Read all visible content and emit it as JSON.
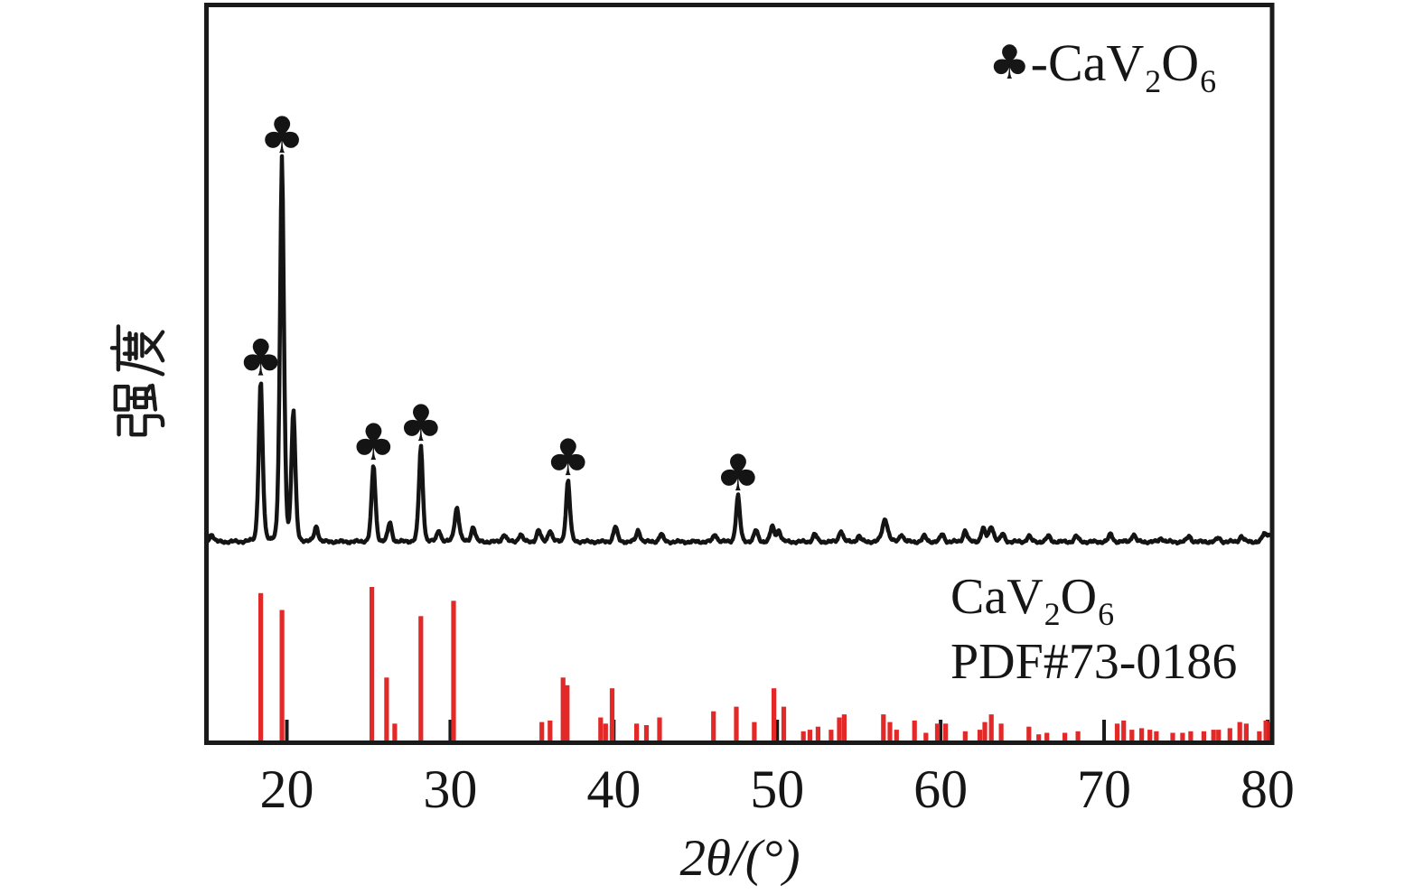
{
  "figure": {
    "background": "#ffffff",
    "axis_color": "#1a1a1a",
    "text_color": "#161616"
  },
  "chart_data": {
    "type": "line",
    "kind": "powder XRD pattern with reference stick pattern",
    "title": "",
    "xlabel": "2θ/(°)",
    "ylabel": "强度",
    "x_range": [
      15.08,
      80.28
    ],
    "x_ticks": [
      20,
      30,
      40,
      50,
      60,
      70,
      80
    ],
    "grid": false,
    "axis_color": "#1a1a1a",
    "legend": {
      "position": "top-right",
      "marker": "♣",
      "formula_pre": "-CaV",
      "formula_sub1": "2",
      "formula_mid": "O",
      "formula_sub2": "6"
    },
    "reference_label": {
      "formula_pre": "CaV",
      "formula_sub1": "2",
      "formula_mid": "O",
      "formula_sub2": "6",
      "line2": "PDF#73-0186"
    },
    "series": [
      {
        "name": "sample-xrd-curve",
        "color": "#141414",
        "marker": "♣",
        "marked_peaks": [
          18.4,
          19.7,
          25.3,
          28.2,
          37.2,
          47.6
        ],
        "peaks": [
          [
            15.4,
            2
          ],
          [
            18.4,
            42
          ],
          [
            19.7,
            100
          ],
          [
            20.4,
            34
          ],
          [
            21.8,
            4
          ],
          [
            25.3,
            20
          ],
          [
            26.3,
            5
          ],
          [
            28.2,
            25
          ],
          [
            29.3,
            3
          ],
          [
            30.4,
            9,
            0.15
          ],
          [
            31.4,
            4
          ],
          [
            33.3,
            2
          ],
          [
            34.3,
            2
          ],
          [
            35.4,
            3
          ],
          [
            36.1,
            3
          ],
          [
            37.2,
            16
          ],
          [
            40.1,
            4
          ],
          [
            41.5,
            3
          ],
          [
            42.9,
            2
          ],
          [
            46.2,
            2
          ],
          [
            47.6,
            12
          ],
          [
            48.7,
            3
          ],
          [
            49.7,
            4
          ],
          [
            50.1,
            3
          ],
          [
            52.3,
            2
          ],
          [
            53.9,
            3
          ],
          [
            55.0,
            1.5
          ],
          [
            56.6,
            6,
            0.18
          ],
          [
            57.6,
            2
          ],
          [
            59.0,
            1.5
          ],
          [
            60.1,
            2
          ],
          [
            61.5,
            3
          ],
          [
            62.6,
            3.5
          ],
          [
            63.1,
            4,
            0.16
          ],
          [
            63.8,
            2
          ],
          [
            65.4,
            1.5
          ],
          [
            66.6,
            1.5
          ],
          [
            68.3,
            1.5
          ],
          [
            70.4,
            2
          ],
          [
            71.8,
            2
          ],
          [
            73.5,
            1
          ],
          [
            75.2,
            1.5
          ],
          [
            77.0,
            1
          ],
          [
            78.4,
            1.5
          ],
          [
            79.8,
            2
          ],
          [
            80.1,
            2
          ]
        ]
      },
      {
        "name": "reference-sticks-CaV2O6-PDF-73-0186",
        "color": "#e22928",
        "sticks": [
          [
            18.4,
            96
          ],
          [
            19.7,
            85
          ],
          [
            25.2,
            100
          ],
          [
            26.1,
            41
          ],
          [
            26.6,
            11
          ],
          [
            28.2,
            81
          ],
          [
            30.2,
            91
          ],
          [
            35.6,
            12
          ],
          [
            36.1,
            13
          ],
          [
            36.9,
            41
          ],
          [
            37.15,
            36
          ],
          [
            39.2,
            15
          ],
          [
            39.5,
            11
          ],
          [
            39.9,
            34
          ],
          [
            41.4,
            11
          ],
          [
            42.0,
            10
          ],
          [
            42.8,
            15
          ],
          [
            46.1,
            19
          ],
          [
            47.5,
            22
          ],
          [
            48.6,
            12
          ],
          [
            49.8,
            34
          ],
          [
            50.4,
            22
          ],
          [
            51.6,
            6
          ],
          [
            52.0,
            7
          ],
          [
            52.5,
            9
          ],
          [
            53.3,
            7
          ],
          [
            53.8,
            15
          ],
          [
            54.1,
            17
          ],
          [
            56.5,
            17
          ],
          [
            56.9,
            12
          ],
          [
            57.3,
            7
          ],
          [
            58.4,
            13
          ],
          [
            59.1,
            5
          ],
          [
            59.8,
            11
          ],
          [
            60.3,
            11
          ],
          [
            61.5,
            6
          ],
          [
            62.4,
            7
          ],
          [
            62.7,
            12
          ],
          [
            63.1,
            17
          ],
          [
            63.7,
            11
          ],
          [
            65.4,
            9
          ],
          [
            66.0,
            4
          ],
          [
            66.5,
            5
          ],
          [
            67.6,
            5
          ],
          [
            68.4,
            6
          ],
          [
            70.8,
            11
          ],
          [
            71.2,
            13
          ],
          [
            71.7,
            7
          ],
          [
            72.3,
            8
          ],
          [
            72.8,
            7
          ],
          [
            73.2,
            6
          ],
          [
            74.2,
            5
          ],
          [
            74.8,
            5
          ],
          [
            75.3,
            6
          ],
          [
            76.1,
            6
          ],
          [
            76.7,
            7
          ],
          [
            77.0,
            7
          ],
          [
            77.7,
            8
          ],
          [
            78.3,
            12
          ],
          [
            78.7,
            11
          ],
          [
            79.5,
            6
          ],
          [
            79.9,
            13
          ],
          [
            80.2,
            12
          ]
        ]
      }
    ]
  }
}
